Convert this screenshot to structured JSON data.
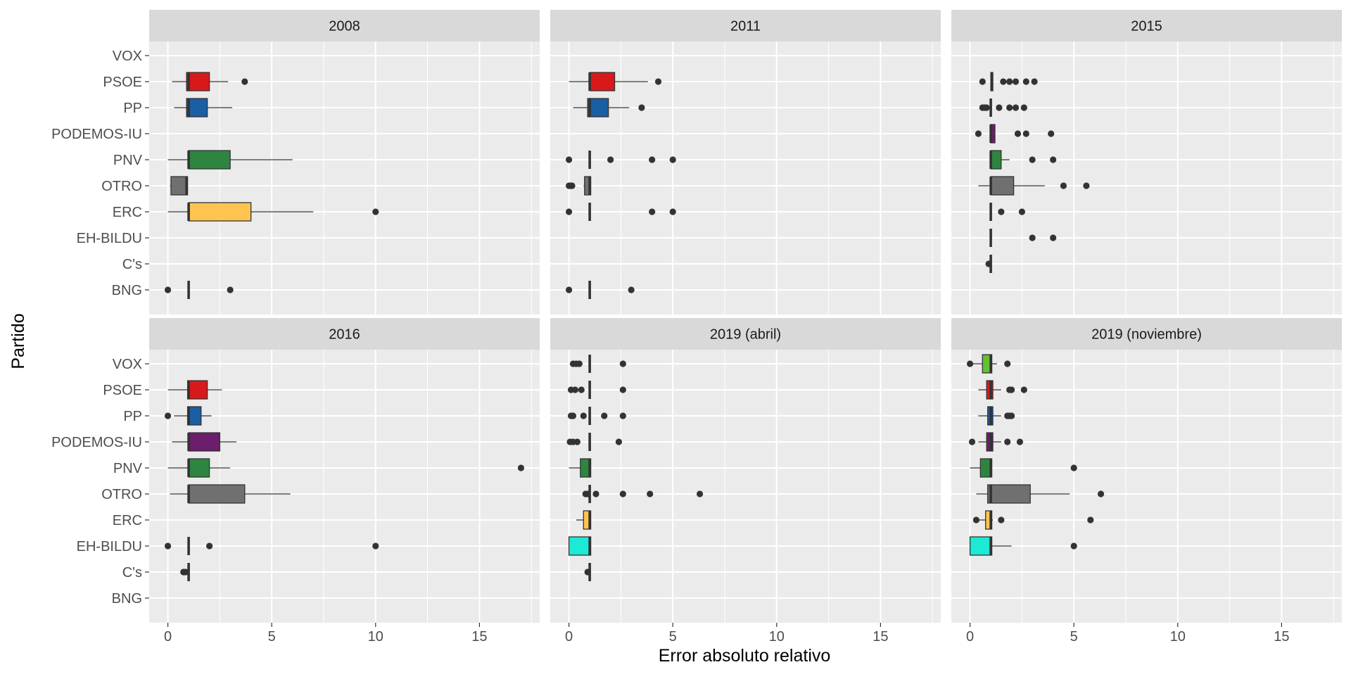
{
  "chart_data": {
    "type": "boxplot",
    "xlabel": "Error absoluto relativo",
    "ylabel": "Partido",
    "xlim": [
      -0.9,
      17.9
    ],
    "x_ticks": [
      0,
      5,
      10,
      15
    ],
    "grid": true,
    "legend": "none",
    "categories": [
      "VOX",
      "PSOE",
      "PP",
      "PODEMOS-IU",
      "PNV",
      "OTRO",
      "ERC",
      "EH-BILDU",
      "C's",
      "BNG"
    ],
    "colors": {
      "PSOE": "#d7191c",
      "PP": "#1a5ea3",
      "PODEMOS-IU": "#6a1e6b",
      "PNV": "#2e8540",
      "OTRO": "#707070",
      "ERC": "#fec44f",
      "EH-BILDU": "#1de9d5",
      "VOX": "#63c132",
      "C's": "#ff8c1a",
      "BNG": "#8fd1ea"
    },
    "panels": [
      {
        "title": "2008",
        "boxes": [
          {
            "party": "PSOE",
            "min": 0.2,
            "q1": 0.9,
            "median": 1.0,
            "q3": 2.0,
            "max": 2.9,
            "outliers": [
              3.7
            ]
          },
          {
            "party": "PP",
            "min": 0.3,
            "q1": 0.9,
            "median": 1.0,
            "q3": 1.9,
            "max": 3.1,
            "outliers": []
          },
          {
            "party": "PNV",
            "min": 0.0,
            "q1": 1.0,
            "median": 1.0,
            "q3": 3.0,
            "max": 6.0,
            "outliers": []
          },
          {
            "party": "OTRO",
            "min": 0.1,
            "q1": 0.15,
            "median": 0.9,
            "q3": 0.95,
            "max": 0.95,
            "outliers": []
          },
          {
            "party": "ERC",
            "min": 0.0,
            "q1": 1.0,
            "median": 1.0,
            "q3": 4.0,
            "max": 7.0,
            "outliers": [
              10.0
            ]
          },
          {
            "party": "BNG",
            "min": 1.0,
            "q1": 1.0,
            "median": 1.0,
            "q3": 1.0,
            "max": 1.0,
            "outliers": [
              0.0,
              3.0
            ]
          }
        ]
      },
      {
        "title": "2011",
        "boxes": [
          {
            "party": "PSOE",
            "min": 0.0,
            "q1": 1.0,
            "median": 1.0,
            "q3": 2.2,
            "max": 3.8,
            "outliers": [
              4.3
            ]
          },
          {
            "party": "PP",
            "min": 0.2,
            "q1": 0.9,
            "median": 1.0,
            "q3": 1.9,
            "max": 2.9,
            "outliers": [
              3.5
            ]
          },
          {
            "party": "PNV",
            "min": 1.0,
            "q1": 1.0,
            "median": 1.0,
            "q3": 1.0,
            "max": 1.0,
            "outliers": [
              0.0,
              2.0,
              4.0,
              5.0
            ]
          },
          {
            "party": "OTRO",
            "min": 0.7,
            "q1": 0.75,
            "median": 1.0,
            "q3": 1.05,
            "max": 1.05,
            "outliers": [
              0.0,
              0.05,
              0.1,
              0.15
            ]
          },
          {
            "party": "ERC",
            "min": 1.0,
            "q1": 1.0,
            "median": 1.0,
            "q3": 1.0,
            "max": 1.0,
            "outliers": [
              0.0,
              4.0,
              5.0
            ]
          },
          {
            "party": "BNG",
            "min": 1.0,
            "q1": 1.0,
            "median": 1.0,
            "q3": 1.0,
            "max": 1.0,
            "outliers": [
              0.0,
              3.0
            ]
          }
        ]
      },
      {
        "title": "2015",
        "boxes": [
          {
            "party": "PSOE",
            "min": 1.0,
            "q1": 1.0,
            "median": 1.05,
            "q3": 1.1,
            "max": 1.1,
            "outliers": [
              0.6,
              1.6,
              1.9,
              2.2,
              2.7,
              3.1
            ]
          },
          {
            "party": "PP",
            "min": 1.0,
            "q1": 1.0,
            "median": 1.0,
            "q3": 1.0,
            "max": 1.0,
            "outliers": [
              0.6,
              0.7,
              0.8,
              1.4,
              1.9,
              2.2,
              2.6
            ]
          },
          {
            "party": "PODEMOS-IU",
            "min": 1.0,
            "q1": 1.0,
            "median": 1.0,
            "q3": 1.2,
            "max": 1.2,
            "outliers": [
              0.4,
              2.3,
              2.7,
              3.9
            ]
          },
          {
            "party": "PNV",
            "min": 1.0,
            "q1": 1.0,
            "median": 1.0,
            "q3": 1.5,
            "max": 1.9,
            "outliers": [
              3.0,
              4.0
            ]
          },
          {
            "party": "OTRO",
            "min": 0.4,
            "q1": 1.0,
            "median": 1.0,
            "q3": 2.1,
            "max": 3.6,
            "outliers": [
              4.5,
              5.6
            ]
          },
          {
            "party": "ERC",
            "min": 1.0,
            "q1": 1.0,
            "median": 1.0,
            "q3": 1.0,
            "max": 1.0,
            "outliers": [
              1.5,
              2.5
            ]
          },
          {
            "party": "EH-BILDU",
            "min": 1.0,
            "q1": 1.0,
            "median": 1.0,
            "q3": 1.0,
            "max": 1.0,
            "outliers": [
              3.0,
              4.0
            ]
          },
          {
            "party": "C's",
            "min": 1.0,
            "q1": 1.0,
            "median": 1.0,
            "q3": 1.0,
            "max": 1.0,
            "outliers": [
              0.9
            ]
          }
        ]
      },
      {
        "title": "2016",
        "boxes": [
          {
            "party": "PSOE",
            "min": 0.0,
            "q1": 0.95,
            "median": 1.0,
            "q3": 1.9,
            "max": 2.6,
            "outliers": []
          },
          {
            "party": "PP",
            "min": 0.3,
            "q1": 0.95,
            "median": 1.0,
            "q3": 1.6,
            "max": 2.1,
            "outliers": [
              0.0
            ]
          },
          {
            "party": "PODEMOS-IU",
            "min": 0.2,
            "q1": 1.0,
            "median": 1.0,
            "q3": 2.5,
            "max": 3.3,
            "outliers": []
          },
          {
            "party": "PNV",
            "min": 0.0,
            "q1": 1.0,
            "median": 1.0,
            "q3": 2.0,
            "max": 3.0,
            "outliers": [
              17.0
            ]
          },
          {
            "party": "OTRO",
            "min": 0.1,
            "q1": 1.0,
            "median": 1.0,
            "q3": 3.7,
            "max": 5.9,
            "outliers": []
          },
          {
            "party": "EH-BILDU",
            "min": 1.0,
            "q1": 1.0,
            "median": 1.0,
            "q3": 1.0,
            "max": 1.0,
            "outliers": [
              0.0,
              2.0,
              10.0
            ]
          },
          {
            "party": "C's",
            "min": 1.0,
            "q1": 1.0,
            "median": 1.0,
            "q3": 1.0,
            "max": 1.0,
            "outliers": [
              0.75,
              0.85
            ]
          }
        ]
      },
      {
        "title": "2019 (abril)",
        "boxes": [
          {
            "party": "VOX",
            "min": 1.0,
            "q1": 1.0,
            "median": 1.0,
            "q3": 1.0,
            "max": 1.0,
            "outliers": [
              0.2,
              0.35,
              0.5,
              2.6
            ]
          },
          {
            "party": "PSOE",
            "min": 1.0,
            "q1": 1.0,
            "median": 1.0,
            "q3": 1.0,
            "max": 1.0,
            "outliers": [
              0.1,
              0.3,
              0.6,
              2.6
            ]
          },
          {
            "party": "PP",
            "min": 1.0,
            "q1": 1.0,
            "median": 1.0,
            "q3": 1.0,
            "max": 1.0,
            "outliers": [
              0.1,
              0.2,
              0.7,
              1.7,
              2.6
            ]
          },
          {
            "party": "PODEMOS-IU",
            "min": 1.0,
            "q1": 1.0,
            "median": 1.0,
            "q3": 1.0,
            "max": 1.0,
            "outliers": [
              0.05,
              0.2,
              0.4,
              2.4
            ]
          },
          {
            "party": "PNV",
            "min": 0.0,
            "q1": 0.55,
            "median": 1.0,
            "q3": 1.05,
            "max": 1.05,
            "outliers": []
          },
          {
            "party": "OTRO",
            "min": 1.0,
            "q1": 1.0,
            "median": 1.0,
            "q3": 1.0,
            "max": 1.0,
            "outliers": [
              0.8,
              0.9,
              1.3,
              2.6,
              3.9,
              6.3
            ]
          },
          {
            "party": "ERC",
            "min": 0.35,
            "q1": 0.7,
            "median": 1.0,
            "q3": 1.05,
            "max": 1.05,
            "outliers": []
          },
          {
            "party": "EH-BILDU",
            "min": 0.0,
            "q1": 0.0,
            "median": 1.0,
            "q3": 1.05,
            "max": 1.05,
            "outliers": []
          },
          {
            "party": "C's",
            "min": 1.0,
            "q1": 1.0,
            "median": 1.0,
            "q3": 1.0,
            "max": 1.0,
            "outliers": [
              0.9
            ]
          }
        ]
      },
      {
        "title": "2019 (noviembre)",
        "boxes": [
          {
            "party": "VOX",
            "min": 0.0,
            "q1": 0.6,
            "median": 1.0,
            "q3": 1.05,
            "max": 1.3,
            "outliers": [
              0.0,
              1.8
            ]
          },
          {
            "party": "PSOE",
            "min": 0.4,
            "q1": 0.8,
            "median": 1.0,
            "q3": 1.1,
            "max": 1.5,
            "outliers": [
              1.9,
              2.0,
              2.6
            ]
          },
          {
            "party": "PP",
            "min": 0.4,
            "q1": 0.85,
            "median": 1.0,
            "q3": 1.1,
            "max": 1.5,
            "outliers": [
              1.8,
              1.9,
              2.0
            ]
          },
          {
            "party": "PODEMOS-IU",
            "min": 0.4,
            "q1": 0.8,
            "median": 1.0,
            "q3": 1.1,
            "max": 1.5,
            "outliers": [
              0.1,
              1.8,
              2.4
            ]
          },
          {
            "party": "PNV",
            "min": 0.0,
            "q1": 0.5,
            "median": 1.0,
            "q3": 1.05,
            "max": 1.05,
            "outliers": [
              5.0
            ]
          },
          {
            "party": "OTRO",
            "min": 0.3,
            "q1": 0.85,
            "median": 1.0,
            "q3": 2.9,
            "max": 4.8,
            "outliers": [
              6.3
            ]
          },
          {
            "party": "ERC",
            "min": 0.4,
            "q1": 0.75,
            "median": 1.0,
            "q3": 1.05,
            "max": 1.1,
            "outliers": [
              0.3,
              1.5,
              5.8
            ]
          },
          {
            "party": "EH-BILDU",
            "min": 0.0,
            "q1": 0.0,
            "median": 1.0,
            "q3": 1.05,
            "max": 2.0,
            "outliers": [
              5.0
            ]
          }
        ]
      }
    ]
  }
}
